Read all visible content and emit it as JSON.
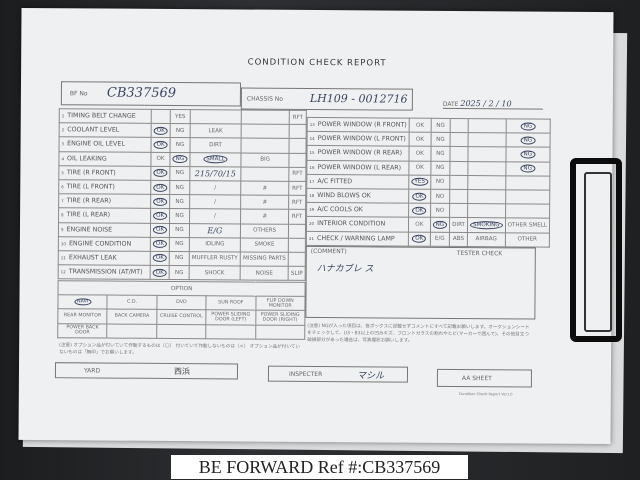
{
  "title": "CONDITION CHECK REPORT",
  "header": {
    "bf_label": "BF No",
    "bf_value": "CB337569",
    "chassis_label": "CHASSIS No",
    "chassis_value": "LH109 - 0012716",
    "date_label": "DATE",
    "date_value": "2025 / 2 / 10"
  },
  "left_rows": [
    {
      "n": "1",
      "label": "TIMING BELT CHANGE",
      "cells": [
        "",
        "YES",
        "",
        "",
        "RFT"
      ],
      "circled": []
    },
    {
      "n": "2",
      "label": "COOLANT LEVEL",
      "cells": [
        "OK",
        "NG",
        "LEAK",
        "",
        ""
      ],
      "circled": [
        0
      ]
    },
    {
      "n": "3",
      "label": "ENGINE OIL LEVEL",
      "cells": [
        "OK",
        "NG",
        "DIRT",
        "",
        ""
      ],
      "circled": [
        0
      ]
    },
    {
      "n": "4",
      "label": "OIL LEAKING",
      "cells": [
        "OK",
        "NG",
        "SMALL",
        "BIG",
        ""
      ],
      "circled": [
        1,
        2
      ]
    },
    {
      "n": "5",
      "label": "TIRE (R FRONT)",
      "cells": [
        "OK",
        "NG",
        "215/70/15",
        "",
        "RFT"
      ],
      "circled": [
        0
      ]
    },
    {
      "n": "6",
      "label": "TIRE (L FRONT)",
      "cells": [
        "OK",
        "NG",
        "/",
        "#",
        "RFT"
      ],
      "circled": [
        0
      ]
    },
    {
      "n": "7",
      "label": "TIRE (R REAR)",
      "cells": [
        "OK",
        "NG",
        "/",
        "#",
        "RFT"
      ],
      "circled": [
        0
      ]
    },
    {
      "n": "8",
      "label": "TIRE (L REAR)",
      "cells": [
        "OK",
        "NG",
        "/",
        "#",
        "RFT"
      ],
      "circled": [
        0
      ]
    },
    {
      "n": "9",
      "label": "ENGINE NOISE",
      "cells": [
        "OK",
        "NG",
        "E/G",
        "OTHERS",
        ""
      ],
      "circled": [
        0
      ]
    },
    {
      "n": "10",
      "label": "ENGINE CONDITION",
      "cells": [
        "OK",
        "NG",
        "IDLING",
        "SMOKE",
        ""
      ],
      "circled": [
        0
      ]
    },
    {
      "n": "11",
      "label": "EXHAUST LEAK",
      "cells": [
        "OK",
        "NG",
        "MUFFLER RUSTY",
        "MISSING PARTS",
        ""
      ],
      "circled": [
        0
      ]
    },
    {
      "n": "12",
      "label": "TRANSMISSION (AT/MT)",
      "cells": [
        "OK",
        "NG",
        "SHOCK",
        "NOISE",
        "SLIP"
      ],
      "circled": [
        0
      ]
    }
  ],
  "right_rows": [
    {
      "n": "13",
      "label": "POWER WINDOW (R FRONT)",
      "cells": [
        "OK",
        "NG",
        "",
        "",
        "NG"
      ],
      "circled": [
        4
      ]
    },
    {
      "n": "14",
      "label": "POWER WINDOW (L FRONT)",
      "cells": [
        "OK",
        "NG",
        "",
        "",
        "NG"
      ],
      "circled": [
        4
      ]
    },
    {
      "n": "15",
      "label": "POWER WINDOW (R REAR)",
      "cells": [
        "OK",
        "NG",
        "",
        "",
        "NG"
      ],
      "circled": [
        4
      ]
    },
    {
      "n": "16",
      "label": "POWER WINDOW (L REAR)",
      "cells": [
        "OK",
        "NG",
        "",
        "",
        "NG"
      ],
      "circled": [
        4
      ]
    },
    {
      "n": "17",
      "label": "A/C FITTED",
      "cells": [
        "YES",
        "NO",
        "",
        "",
        ""
      ],
      "circled": [
        0
      ]
    },
    {
      "n": "18",
      "label": "WIND BLOWS OK",
      "cells": [
        "OK",
        "NO",
        "",
        "",
        ""
      ],
      "circled": [
        0
      ]
    },
    {
      "n": "19",
      "label": "A/C COOLS OK",
      "cells": [
        "OK",
        "NO",
        "",
        "",
        ""
      ],
      "circled": [
        0
      ]
    },
    {
      "n": "20",
      "label": "INTERIOR CONDITION",
      "cells": [
        "OK",
        "NG",
        "DIRT",
        "SMOKING",
        "OTHER SMELL"
      ],
      "circled": [
        1,
        3
      ]
    },
    {
      "n": "21",
      "label": "CHECK / WARNING LAMP",
      "cells": [
        "OK",
        "E/G",
        "ABS",
        "AIRBAG",
        "OTHER"
      ],
      "circled": [
        0
      ]
    }
  ],
  "comment_label": "(COMMENT)",
  "tester_check": "TESTER CHECK",
  "comment_value": "ハナカブレ ス",
  "option_label": "OPTION",
  "options": [
    [
      "NAVI",
      "C.D.",
      "DVD",
      "SUN ROOF",
      "FLIP DOWN MONITOR"
    ],
    [
      "REAR MONITOR",
      "BACK CAMERA",
      "CRUISE CONTROL",
      "POWER SLIDING DOOR (LEFT)",
      "POWER SLIDING DOOR (RIGHT)"
    ],
    [
      "POWER BACK DOOR",
      "",
      "",
      "",
      ""
    ]
  ],
  "option_note": "(注意) オプション品が付いていて作動するものは〔〇〕 付いていて作動しないものは〔×〕 オプション品が付いていないものは「無印」でお願いします。",
  "ng_note": "(注意) NGが入った項目は、各ボックスに記載せずコメントにすべて記載お願いします。オークションシートをチェックして、U3・B3以上の凹みキズ、フロントガラスの割れやヒビ(マーカーで囲んで)、その他目立つ破損部分があった場合は、写真撮影お願いします。",
  "footer": {
    "yard_label": "YARD",
    "yard_value": "西浜",
    "inspecter_label": "INSPECTER",
    "inspecter_value": "マシル",
    "aa_label": "AA SHEET",
    "version": "Condition Check Report Ver1.0"
  },
  "watermark": "BE FORWARD Ref #:CB337569"
}
